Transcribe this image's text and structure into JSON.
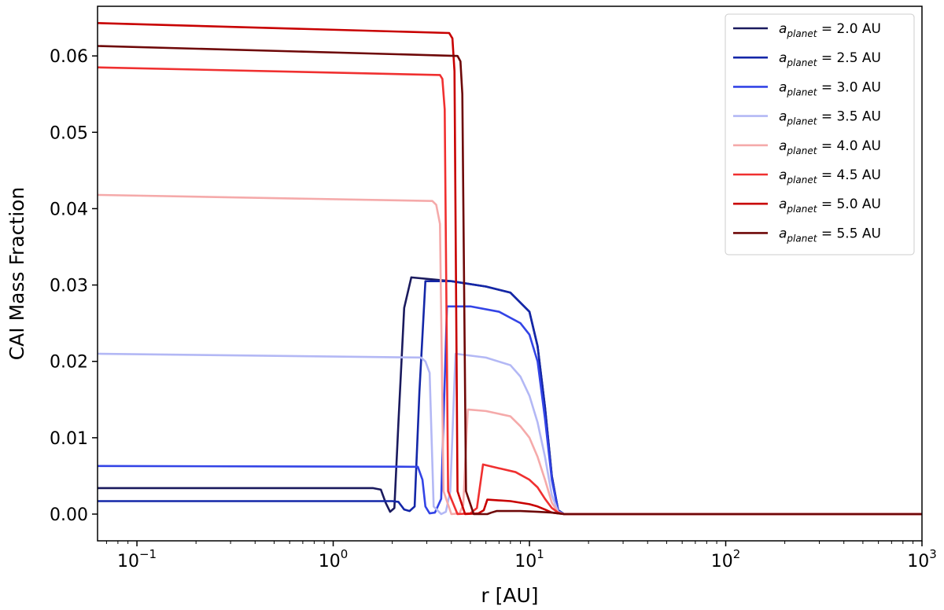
{
  "chart_data": {
    "type": "line",
    "title": "",
    "xlabel": "r [AU]",
    "ylabel": "CAI Mass Fraction",
    "xscale": "log",
    "xlim": [
      0.063,
      1000
    ],
    "ylim": [
      -0.0035,
      0.0665
    ],
    "x_ticks": [
      {
        "value": 0.1,
        "base": "10",
        "exp": "−1"
      },
      {
        "value": 1,
        "base": "10",
        "exp": "0"
      },
      {
        "value": 10,
        "base": "10",
        "exp": "1"
      },
      {
        "value": 100,
        "base": "10",
        "exp": "2"
      },
      {
        "value": 1000,
        "base": "10",
        "exp": "3"
      }
    ],
    "y_ticks": [
      {
        "value": 0.0,
        "label": "0.00"
      },
      {
        "value": 0.01,
        "label": "0.01"
      },
      {
        "value": 0.02,
        "label": "0.02"
      },
      {
        "value": 0.03,
        "label": "0.03"
      },
      {
        "value": 0.04,
        "label": "0.04"
      },
      {
        "value": 0.05,
        "label": "0.05"
      },
      {
        "value": 0.06,
        "label": "0.06"
      }
    ],
    "grid": false,
    "legend_position": "top-right",
    "series": [
      {
        "name": "2.0 AU",
        "color": "#1a1a5e",
        "x": [
          0.063,
          1.6,
          1.75,
          1.85,
          1.95,
          2.05,
          2.15,
          2.3,
          2.5,
          4,
          6,
          8,
          10,
          11,
          12,
          13,
          14,
          15,
          1000
        ],
        "y": [
          0.0034,
          0.0034,
          0.0032,
          0.0015,
          0.0003,
          0.0008,
          0.012,
          0.027,
          0.031,
          0.0305,
          0.0298,
          0.029,
          0.0265,
          0.022,
          0.014,
          0.005,
          0.0005,
          0.0,
          0.0
        ]
      },
      {
        "name": "2.5 AU",
        "color": "#1427a8",
        "x": [
          0.063,
          2.0,
          2.15,
          2.3,
          2.45,
          2.6,
          2.75,
          2.95,
          4,
          6,
          8,
          10,
          11,
          12,
          13,
          14,
          15,
          1000
        ],
        "y": [
          0.0017,
          0.0017,
          0.0016,
          0.0006,
          0.0004,
          0.001,
          0.016,
          0.0305,
          0.0305,
          0.0298,
          0.029,
          0.0265,
          0.022,
          0.014,
          0.005,
          0.0005,
          0.0,
          0.0
        ]
      },
      {
        "name": "3.0 AU",
        "color": "#3344e6",
        "x": [
          0.063,
          2.5,
          2.7,
          2.85,
          2.95,
          3.1,
          3.3,
          3.55,
          3.8,
          5,
          7,
          9,
          10,
          11,
          12,
          13,
          14,
          15,
          1000
        ],
        "y": [
          0.0063,
          0.0062,
          0.0062,
          0.0045,
          0.001,
          0.0001,
          0.0002,
          0.002,
          0.0272,
          0.0272,
          0.0265,
          0.025,
          0.0235,
          0.02,
          0.0125,
          0.0045,
          0.0004,
          0.0,
          0.0
        ]
      },
      {
        "name": "3.5 AU",
        "color": "#b3b8f5",
        "x": [
          0.063,
          2.8,
          2.95,
          3.1,
          3.25,
          3.55,
          3.75,
          3.95,
          4.2,
          6,
          8,
          9,
          10,
          11,
          12,
          13,
          14,
          15,
          1000
        ],
        "y": [
          0.021,
          0.0205,
          0.02,
          0.0185,
          0.001,
          0.0,
          0.0003,
          0.003,
          0.021,
          0.0205,
          0.0195,
          0.018,
          0.0155,
          0.012,
          0.0075,
          0.0025,
          0.0003,
          0.0,
          0.0
        ]
      },
      {
        "name": "4.0 AU",
        "color": "#f5aaaa",
        "x": [
          0.063,
          3.2,
          3.35,
          3.5,
          3.65,
          4.0,
          4.4,
          4.6,
          4.85,
          6,
          8,
          9,
          10,
          11,
          12,
          13,
          14,
          15,
          1000
        ],
        "y": [
          0.0418,
          0.041,
          0.0405,
          0.038,
          0.003,
          0.0,
          0.0001,
          0.0012,
          0.0137,
          0.0135,
          0.0128,
          0.0115,
          0.01,
          0.0075,
          0.0045,
          0.0015,
          0.0002,
          0.0,
          0.0
        ]
      },
      {
        "name": "4.5 AU",
        "color": "#f03030",
        "x": [
          0.063,
          3.5,
          3.6,
          3.7,
          3.85,
          4.3,
          5.0,
          5.4,
          5.8,
          7,
          8.5,
          10,
          11,
          12,
          13,
          14,
          15,
          1000
        ],
        "y": [
          0.0585,
          0.0575,
          0.057,
          0.053,
          0.003,
          0.0,
          0.0001,
          0.0008,
          0.0065,
          0.006,
          0.0055,
          0.0045,
          0.0035,
          0.002,
          0.0008,
          0.0002,
          0.0,
          0.0
        ]
      },
      {
        "name": "5.0 AU",
        "color": "#c80000",
        "x": [
          0.063,
          3.9,
          4.05,
          4.15,
          4.3,
          4.7,
          5.5,
          5.85,
          6.1,
          8,
          10,
          11,
          12,
          13,
          14,
          15,
          1000
        ],
        "y": [
          0.0643,
          0.063,
          0.0623,
          0.058,
          0.003,
          0.0,
          0.0001,
          0.0005,
          0.0019,
          0.0017,
          0.0013,
          0.001,
          0.0006,
          0.0002,
          0.0001,
          0.0,
          0.0
        ]
      },
      {
        "name": "5.5 AU",
        "color": "#6e0808",
        "x": [
          0.063,
          4.3,
          4.45,
          4.55,
          4.75,
          5.2,
          6.1,
          6.4,
          6.8,
          9,
          11,
          13,
          14,
          15,
          1000
        ],
        "y": [
          0.0613,
          0.06,
          0.0593,
          0.055,
          0.003,
          0.0,
          0.0,
          0.0002,
          0.0004,
          0.0004,
          0.0003,
          0.0002,
          0.0001,
          0.0,
          0.0
        ]
      }
    ]
  }
}
